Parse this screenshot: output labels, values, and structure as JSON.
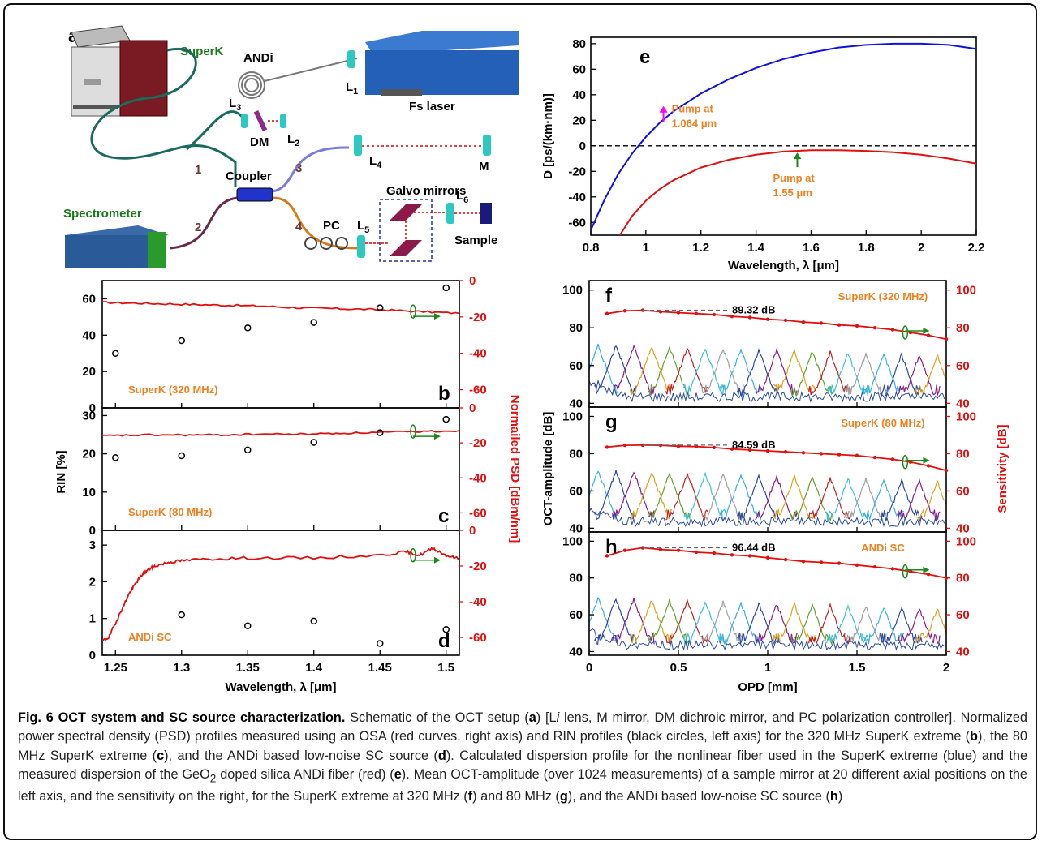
{
  "caption": {
    "label": "Fig. 6 OCT system and SC source characterization.",
    "parts": [
      {
        "t": " Schematic of the OCT setup ("
      },
      {
        "b": "a"
      },
      {
        "t": ") [L"
      },
      {
        "i": "i"
      },
      {
        "t": " lens, M mirror, DM dichroic mirror, and PC polarization controller]. Normalized power spectral density (PSD) profiles measured using an OSA (red curves, right axis) and RIN profiles (black circles, left axis) for the 320 MHz SuperK extreme ("
      },
      {
        "b": "b"
      },
      {
        "t": "), the 80 MHz SuperK extreme ("
      },
      {
        "b": "c"
      },
      {
        "t": "), and the ANDi based low-noise SC source ("
      },
      {
        "b": "d"
      },
      {
        "t": "). Calculated dispersion profile for the nonlinear fiber used in the SuperK extreme (blue) and the measured dispersion of the GeO"
      },
      {
        "sub": "2"
      },
      {
        "t": " doped silica ANDi fiber (red) ("
      },
      {
        "b": "e"
      },
      {
        "t": "). Mean OCT-amplitude (over 1024 measurements) of a sample mirror at 20 different axial positions on the left axis, and the sensitivity on the right, for the SuperK extreme at 320 MHz ("
      },
      {
        "b": "f"
      },
      {
        "t": ") and 80 MHz ("
      },
      {
        "b": "g"
      },
      {
        "t": "), and the ANDi based low-noise SC source ("
      },
      {
        "b": "h"
      },
      {
        "t": ")"
      }
    ]
  },
  "schematic": {
    "panel": "a",
    "labels": {
      "superk": "SuperK",
      "andi": "ANDi",
      "fs_laser": "Fs laser",
      "l1": "L",
      "l1s": "1",
      "l2": "L",
      "l2s": "2",
      "l3": "L",
      "l3s": "3",
      "l4": "L",
      "l4s": "4",
      "l5": "L",
      "l5s": "5",
      "l6": "L",
      "l6s": "6",
      "dm": "DM",
      "m": "M",
      "coupler": "Coupler",
      "galvo": "Galvo mirrors",
      "pc": "PC",
      "sample": "Sample",
      "spectrometer": "Spectrometer",
      "p1": "1",
      "p2": "2",
      "p3": "3",
      "p4": "4"
    }
  },
  "chart_data": [
    {
      "id": "e",
      "type": "line",
      "panel": "e",
      "xlabel": "Wavelength, λ [μm]",
      "ylabel": "D [ps/(km·nm)]",
      "xlim": [
        0.8,
        2.2
      ],
      "ylim": [
        -70,
        85
      ],
      "xticks": [
        0.8,
        1,
        1.2,
        1.4,
        1.6,
        1.8,
        2,
        2.2
      ],
      "yticks": [
        -60,
        -40,
        -20,
        0,
        20,
        40,
        60,
        80
      ],
      "color_blue": "#1010e0",
      "color_red": "#e01010",
      "series": [
        {
          "color": "blue",
          "x": [
            0.8,
            0.85,
            0.9,
            0.95,
            1.0,
            1.05,
            1.1,
            1.2,
            1.3,
            1.4,
            1.5,
            1.6,
            1.7,
            1.8,
            1.9,
            2.0,
            2.1,
            2.2
          ],
          "y": [
            -66,
            -42,
            -22,
            -6,
            7,
            18,
            27,
            41,
            52,
            61,
            68,
            73,
            77,
            79,
            80,
            80,
            79,
            76
          ]
        },
        {
          "color": "red",
          "x": [
            0.9,
            0.95,
            1.0,
            1.05,
            1.1,
            1.2,
            1.3,
            1.4,
            1.5,
            1.6,
            1.7,
            1.8,
            1.9,
            2.0,
            2.1,
            2.2
          ],
          "y": [
            -72,
            -55,
            -43,
            -34,
            -27,
            -17,
            -11,
            -7,
            -4.5,
            -3.5,
            -3.5,
            -4,
            -5,
            -7,
            -10,
            -14
          ]
        }
      ],
      "annotations": [
        {
          "text1": "Pump at",
          "text2": "1.064 μm",
          "x": 1.064,
          "y": 21
        },
        {
          "text1": "Pump at",
          "text2": "1.55 μm",
          "x": 1.55,
          "y": -4
        }
      ]
    },
    {
      "id": "bcd",
      "type": "line+scatter",
      "xlabel": "Wavelength, λ [μm]",
      "ylabel_left": "RIN [%]",
      "ylabel_right": "Normailed PSD [dBm/nm]",
      "xlim": [
        1.24,
        1.51
      ],
      "xticks": [
        1.25,
        1.3,
        1.35,
        1.4,
        1.45,
        1.5
      ],
      "panels": [
        {
          "panel": "b",
          "name": "SuperK (320 MHz)",
          "ylim": [
            0,
            70
          ],
          "yticks": [
            0,
            20,
            40,
            60
          ],
          "y2lim": [
            -70,
            0
          ],
          "y2ticks": [
            0,
            -20,
            -40,
            -60
          ],
          "rin_x": [
            1.25,
            1.3,
            1.35,
            1.4,
            1.45,
            1.5
          ],
          "rin_y": [
            30,
            37,
            44,
            47,
            55,
            66
          ],
          "psd_x": [
            1.24,
            1.27,
            1.3,
            1.33,
            1.36,
            1.39,
            1.42,
            1.45,
            1.48,
            1.51
          ],
          "psd_y": [
            -12,
            -12.5,
            -13,
            -13.5,
            -14,
            -15,
            -15.5,
            -16,
            -17,
            -18
          ]
        },
        {
          "panel": "c",
          "name": "SuperK (80 MHz)",
          "ylim": [
            0,
            32
          ],
          "yticks": [
            0,
            10,
            20,
            30
          ],
          "y2lim": [
            -70,
            0
          ],
          "y2ticks": [
            0,
            -20,
            -40,
            -60
          ],
          "rin_x": [
            1.25,
            1.3,
            1.35,
            1.4,
            1.45,
            1.5
          ],
          "rin_y": [
            19,
            19.5,
            21,
            23,
            25.5,
            29
          ],
          "psd_x": [
            1.24,
            1.27,
            1.3,
            1.33,
            1.36,
            1.39,
            1.42,
            1.45,
            1.48,
            1.51
          ],
          "psd_y": [
            -16,
            -15.5,
            -15.5,
            -15.5,
            -15,
            -15,
            -14.5,
            -14,
            -13.5,
            -13
          ]
        },
        {
          "panel": "d",
          "name": "ANDi SC",
          "ylim": [
            0,
            3.4
          ],
          "yticks": [
            0,
            1,
            2,
            3
          ],
          "y2lim": [
            -70,
            0
          ],
          "y2ticks": [
            0,
            -20,
            -40,
            -60
          ],
          "rin_x": [
            1.3,
            1.35,
            1.4,
            1.45,
            1.5
          ],
          "rin_y": [
            1.1,
            0.8,
            0.93,
            0.32,
            0.7
          ],
          "psd_x": [
            1.24,
            1.245,
            1.25,
            1.255,
            1.26,
            1.265,
            1.27,
            1.275,
            1.28,
            1.29,
            1.3,
            1.32,
            1.35,
            1.4,
            1.45,
            1.47,
            1.48,
            1.49,
            1.5,
            1.51
          ],
          "psd_y": [
            -62,
            -60,
            -52,
            -44,
            -36,
            -30,
            -25,
            -22,
            -20,
            -18,
            -17,
            -16,
            -15.5,
            -15.5,
            -14,
            -12,
            -14,
            -10,
            -14,
            -16
          ]
        }
      ]
    },
    {
      "id": "fgh",
      "type": "line",
      "xlabel": "OPD [mm]",
      "ylabel_left": "OCT-amplitude [dB]",
      "ylabel_right": "Sensitivity [dB]",
      "xlim": [
        0,
        2
      ],
      "xticks": [
        0,
        0.5,
        1,
        1.5,
        2
      ],
      "panels": [
        {
          "panel": "f",
          "name": "SuperK (320 MHz)",
          "peak_label": "89.32 dB",
          "ylim": [
            38,
            105
          ],
          "yticks": [
            40,
            60,
            80,
            100
          ],
          "y2ticks": [
            40,
            60,
            80,
            100
          ],
          "sens_x": [
            0.1,
            0.2,
            0.3,
            0.4,
            0.5,
            0.6,
            0.7,
            0.8,
            0.9,
            1.0,
            1.1,
            1.2,
            1.3,
            1.4,
            1.5,
            1.6,
            1.7,
            1.8,
            1.9,
            2.0
          ],
          "sens_y": [
            87.5,
            89,
            89.3,
            88.5,
            88,
            87.5,
            87,
            86,
            85.5,
            84.5,
            84,
            83,
            82.5,
            81.5,
            81,
            80,
            79,
            77.5,
            76,
            74
          ]
        },
        {
          "panel": "g",
          "name": "SuperK (80 MHz)",
          "peak_label": "84.59 dB",
          "ylim": [
            38,
            105
          ],
          "yticks": [
            40,
            60,
            80,
            100
          ],
          "y2ticks": [
            40,
            60,
            80,
            100
          ],
          "sens_x": [
            0.1,
            0.2,
            0.3,
            0.4,
            0.5,
            0.6,
            0.7,
            0.8,
            0.9,
            1.0,
            1.1,
            1.2,
            1.3,
            1.4,
            1.5,
            1.6,
            1.7,
            1.8,
            1.9,
            2.0
          ],
          "sens_y": [
            83.5,
            84.5,
            84.6,
            84.5,
            84,
            83.8,
            83.3,
            82.5,
            82,
            81.5,
            81,
            80.5,
            80,
            79.5,
            79,
            78,
            77,
            75.5,
            73.5,
            71
          ]
        },
        {
          "panel": "h",
          "name": "ANDi SC",
          "peak_label": "96.44 dB",
          "ylim": [
            38,
            105
          ],
          "yticks": [
            40,
            60,
            80,
            100
          ],
          "y2ticks": [
            40,
            60,
            80,
            100
          ],
          "sens_x": [
            0.1,
            0.2,
            0.3,
            0.4,
            0.5,
            0.6,
            0.7,
            0.8,
            0.9,
            1.0,
            1.1,
            1.2,
            1.3,
            1.4,
            1.5,
            1.6,
            1.7,
            1.8,
            1.9,
            2.0
          ],
          "sens_y": [
            92,
            95,
            96.4,
            95.5,
            95,
            94,
            93.5,
            92.5,
            92,
            91,
            90,
            89,
            88.5,
            88,
            87,
            86,
            85,
            83.5,
            82,
            80
          ]
        }
      ]
    }
  ]
}
